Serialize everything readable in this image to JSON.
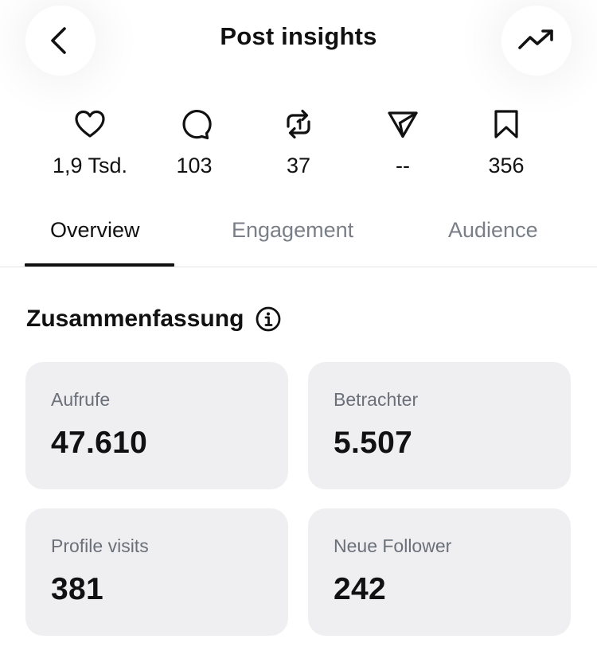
{
  "header": {
    "title": "Post insights",
    "back_icon": "chevron-left-icon",
    "trend_icon": "trending-up-icon"
  },
  "stats": [
    {
      "icon": "heart-icon",
      "value": "1,9 Tsd."
    },
    {
      "icon": "comment-icon",
      "value": "103"
    },
    {
      "icon": "repost-icon",
      "value": "37"
    },
    {
      "icon": "send-icon",
      "value": "--"
    },
    {
      "icon": "bookmark-icon",
      "value": "356"
    }
  ],
  "tabs": [
    {
      "label": "Overview",
      "active": true
    },
    {
      "label": "Engagement",
      "active": false
    },
    {
      "label": "Audience",
      "active": false
    }
  ],
  "summary": {
    "title": "Zusammenfassung",
    "info_icon": "info-icon",
    "cards": [
      {
        "label": "Aufrufe",
        "value": "47.610"
      },
      {
        "label": "Betrachter",
        "value": "5.507"
      },
      {
        "label": "Profile visits",
        "value": "381"
      },
      {
        "label": "Neue Follower",
        "value": "242"
      }
    ]
  },
  "colors": {
    "text": "#111111",
    "muted_text": "#6b6f78",
    "inactive_tab": "#7a7e87",
    "card_bg": "#efeff2"
  }
}
